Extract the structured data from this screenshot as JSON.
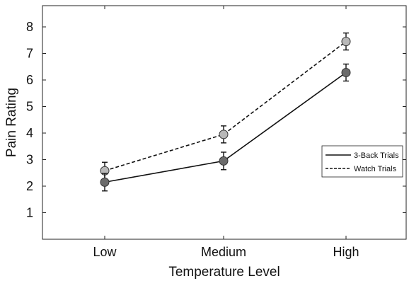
{
  "chart_data": {
    "type": "line",
    "title": "",
    "xlabel": "Temperature Level",
    "ylabel": "Pain Rating",
    "categories": [
      "Low",
      "Medium",
      "High"
    ],
    "yticks": [
      1,
      2,
      3,
      4,
      5,
      6,
      7,
      8
    ],
    "ylim": [
      0,
      8.8
    ],
    "grid": false,
    "legend_position": "right",
    "series": [
      {
        "name": "3-Back Trials",
        "values": [
          2.15,
          2.95,
          6.28
        ],
        "errors": [
          0.33,
          0.33,
          0.32
        ],
        "line_style": "solid",
        "marker_color": "#6b6b6b"
      },
      {
        "name": "Watch Trials",
        "values": [
          2.58,
          3.95,
          7.45
        ],
        "errors": [
          0.32,
          0.32,
          0.32
        ],
        "line_style": "dashed",
        "marker_color": "#b8b8b8"
      }
    ]
  }
}
